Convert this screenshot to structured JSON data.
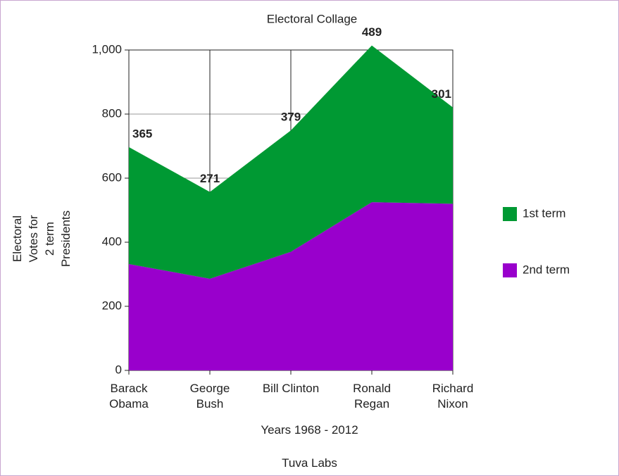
{
  "chart_data": {
    "type": "area",
    "stacked": true,
    "title": "Electoral Collage",
    "x_label": "Years 1968 - 2012",
    "y_label": "Electoral\nVotes for\n2 term\nPresidents",
    "footer": "Tuva Labs",
    "categories": [
      "Barack\nObama",
      "George\nBush",
      "Bill Clinton",
      "Ronald\nRegan",
      "Richard\nNixon"
    ],
    "series": [
      {
        "name": "2nd term",
        "color": "#9900cc",
        "values": [
          332,
          286,
          370,
          525,
          520
        ]
      },
      {
        "name": "1st term",
        "color": "#009933",
        "values": [
          365,
          271,
          379,
          489,
          301
        ]
      }
    ],
    "ylim": [
      0,
      1000
    ],
    "yticks": [
      0,
      200,
      400,
      600,
      800,
      {
        "value": 1000,
        "label": "1,000"
      }
    ],
    "grid": true,
    "legend": "right"
  }
}
